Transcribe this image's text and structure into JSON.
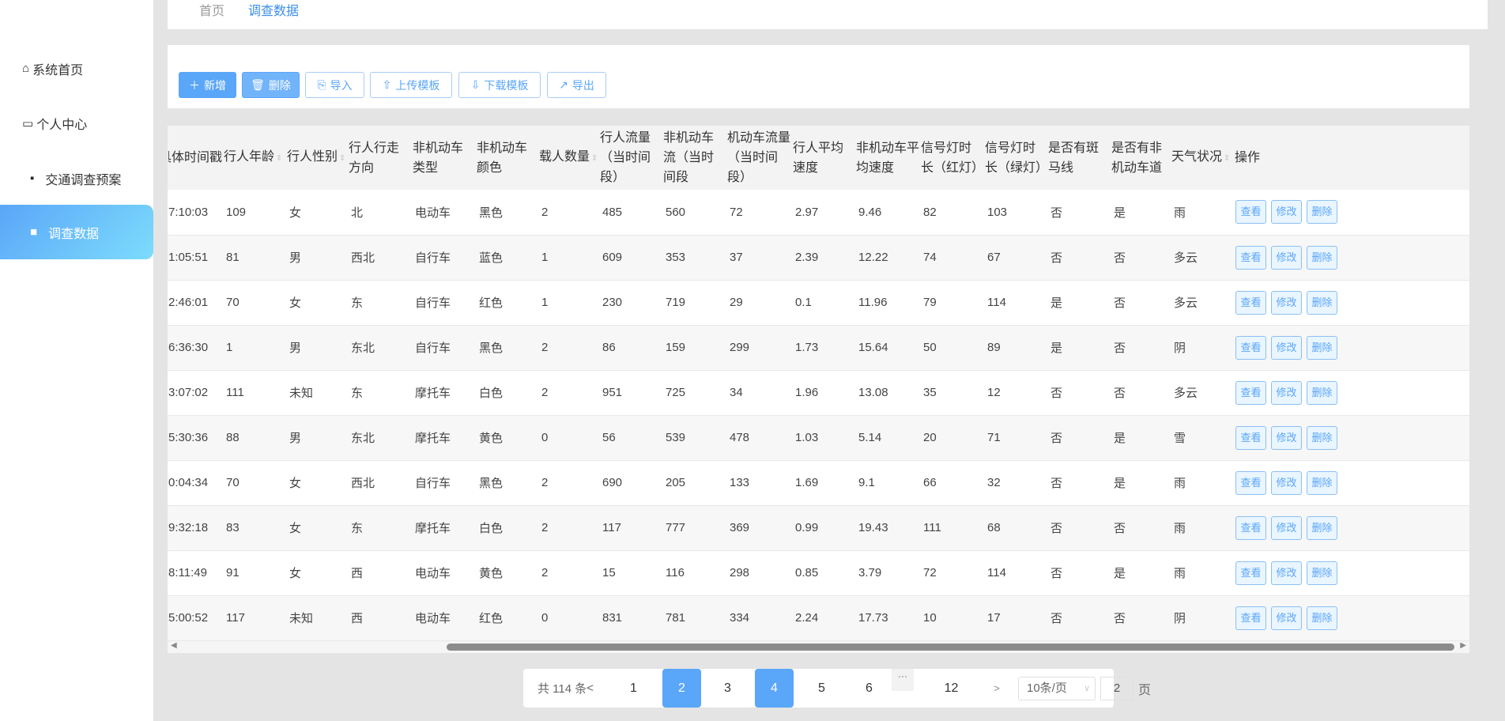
{
  "sidebar": {
    "items": [
      {
        "label": "系统首页",
        "icon": "home-icon"
      },
      {
        "label": "个人中心",
        "icon": "id-card-icon"
      },
      {
        "label": "交通调查预案",
        "icon": "chat-icon"
      },
      {
        "label": "调查数据",
        "icon": "briefcase-icon",
        "active": true
      }
    ]
  },
  "breadcrumb": {
    "home": "首页",
    "current": "调查数据"
  },
  "toolbar": {
    "add": "新增",
    "delete": "删除",
    "import": "导入",
    "upload_template": "上传模板",
    "download_template": "下载模板",
    "export": "导出"
  },
  "table": {
    "columns": [
      "具体时间戳",
      "行人年龄",
      "行人性别",
      "行人行走方向",
      "非机动车类型",
      "非机动车颜色",
      "载人数量",
      "行人流量（当时间段）",
      "非机动车流（当时间段",
      "机动车流量（当时间段）",
      "行人平均速度",
      "非机动车平均速度",
      "信号灯时长（红灯）",
      "信号灯时长（绿灯）",
      "是否有斑马线",
      "是否有非机动车道",
      "天气状况",
      "操作"
    ],
    "actions": {
      "view": "查看",
      "edit": "修改",
      "delete": "删除"
    },
    "rows": [
      [
        "7:10:03",
        "109",
        "女",
        "北",
        "电动车",
        "黑色",
        "2",
        "485",
        "560",
        "72",
        "2.97",
        "9.46",
        "82",
        "103",
        "否",
        "是",
        "雨"
      ],
      [
        "1:05:51",
        "81",
        "男",
        "西北",
        "自行车",
        "蓝色",
        "1",
        "609",
        "353",
        "37",
        "2.39",
        "12.22",
        "74",
        "67",
        "否",
        "否",
        "多云"
      ],
      [
        "2:46:01",
        "70",
        "女",
        "东",
        "自行车",
        "红色",
        "1",
        "230",
        "719",
        "29",
        "0.1",
        "11.96",
        "79",
        "114",
        "是",
        "否",
        "多云"
      ],
      [
        "6:36:30",
        "1",
        "男",
        "东北",
        "自行车",
        "黑色",
        "2",
        "86",
        "159",
        "299",
        "1.73",
        "15.64",
        "50",
        "89",
        "是",
        "否",
        "阴"
      ],
      [
        "3:07:02",
        "111",
        "未知",
        "东",
        "摩托车",
        "白色",
        "2",
        "951",
        "725",
        "34",
        "1.96",
        "13.08",
        "35",
        "12",
        "否",
        "否",
        "多云"
      ],
      [
        "5:30:36",
        "88",
        "男",
        "东北",
        "摩托车",
        "黄色",
        "0",
        "56",
        "539",
        "478",
        "1.03",
        "5.14",
        "20",
        "71",
        "否",
        "是",
        "雪"
      ],
      [
        "0:04:34",
        "70",
        "女",
        "西北",
        "自行车",
        "黑色",
        "2",
        "690",
        "205",
        "133",
        "1.69",
        "9.1",
        "66",
        "32",
        "否",
        "是",
        "雨"
      ],
      [
        "9:32:18",
        "83",
        "女",
        "东",
        "摩托车",
        "白色",
        "2",
        "117",
        "777",
        "369",
        "0.99",
        "19.43",
        "111",
        "68",
        "否",
        "否",
        "雨"
      ],
      [
        "8:11:49",
        "91",
        "女",
        "西",
        "电动车",
        "黄色",
        "2",
        "15",
        "116",
        "298",
        "0.85",
        "3.79",
        "72",
        "114",
        "否",
        "是",
        "雨"
      ],
      [
        "5:00:52",
        "117",
        "未知",
        "西",
        "电动车",
        "红色",
        "0",
        "831",
        "781",
        "334",
        "2.24",
        "17.73",
        "10",
        "17",
        "否",
        "否",
        "阴"
      ]
    ]
  },
  "pagination": {
    "total": "共 114 条",
    "prev": "<",
    "pages": [
      "1",
      "2",
      "3",
      "4",
      "5",
      "6"
    ],
    "ellipsis": "···",
    "last": "12",
    "next": ">",
    "current_page": "2",
    "hovered_page": "4",
    "page_size": "10条/页",
    "jump_value": "2",
    "jump_suffix": "页"
  },
  "colors": {
    "accent": "#5aa6f8"
  }
}
